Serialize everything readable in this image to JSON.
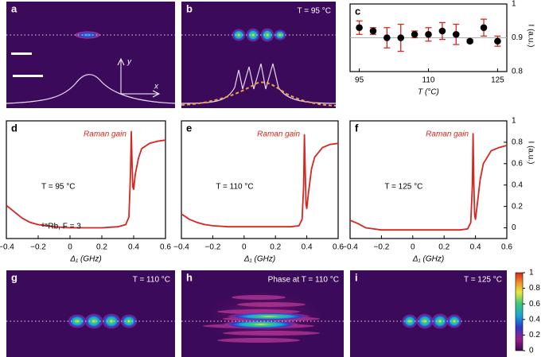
{
  "chart_data": [
    {
      "type": "image",
      "panel": "a",
      "y_arrow": "y",
      "x_arrow": "x"
    },
    {
      "type": "image",
      "panel": "b",
      "annotation": "T = 95 °C"
    },
    {
      "type": "scatter",
      "panel": "c",
      "x": [
        95,
        98,
        101,
        104,
        107,
        110,
        113,
        116,
        119,
        122,
        125
      ],
      "values": [
        0.93,
        0.92,
        0.9,
        0.9,
        0.91,
        0.91,
        0.92,
        0.91,
        0.89,
        0.93,
        0.89
      ],
      "errors": [
        0.02,
        0.01,
        0.03,
        0.04,
        0.01,
        0.02,
        0.025,
        0.03,
        0.005,
        0.025,
        0.015
      ],
      "hline": 0.9,
      "color": "#000000",
      "error_color": "#d7261e",
      "hline_color": "#b0b0b0",
      "xlim": [
        93,
        127
      ],
      "ylim": [
        0.8,
        1.0
      ],
      "xticks": [
        95,
        110,
        125
      ],
      "yticks": [
        0.8,
        0.9,
        1
      ],
      "xlabel": "T (°C)",
      "ylabel": "I (a.u.)"
    },
    {
      "type": "line",
      "panel": "d",
      "annotation": "Raman gain",
      "temperature": "T = 95 °C",
      "note": "⁸⁵Rb, F = 3",
      "color": "#d7261e",
      "x": [
        -0.4,
        -0.35,
        -0.3,
        -0.25,
        -0.2,
        -0.1,
        0,
        0.1,
        0.2,
        0.3,
        0.35,
        0.37,
        0.38,
        0.385,
        0.39,
        0.395,
        0.4,
        0.41,
        0.43,
        0.45,
        0.5,
        0.55,
        0.6
      ],
      "values": [
        0.21,
        0.15,
        0.09,
        0.05,
        0.03,
        0.01,
        0.0,
        0.0,
        0.0,
        0.01,
        0.03,
        0.1,
        0.5,
        0.9,
        0.6,
        0.38,
        0.36,
        0.5,
        0.65,
        0.74,
        0.79,
        0.81,
        0.82
      ],
      "xlim": [
        -0.4,
        0.6
      ],
      "ylim": [
        -0.1,
        1
      ],
      "xticks": [
        {
          "value": -0.4,
          "label": "−0.4"
        },
        {
          "value": -0.2,
          "label": "−0.2"
        },
        0,
        0.2,
        0.4,
        0.6
      ],
      "xlabel": "Δ₁ (GHz)"
    },
    {
      "type": "line",
      "panel": "e",
      "annotation": "Raman gain",
      "temperature": "T = 110 °C",
      "color": "#d7261e",
      "x": [
        -0.4,
        -0.35,
        -0.3,
        -0.25,
        -0.2,
        -0.1,
        0,
        0.1,
        0.2,
        0.3,
        0.35,
        0.37,
        0.38,
        0.385,
        0.39,
        0.395,
        0.4,
        0.41,
        0.43,
        0.45,
        0.5,
        0.55,
        0.6
      ],
      "values": [
        0.13,
        0.08,
        0.05,
        0.03,
        0.02,
        0.01,
        0.01,
        0.01,
        0.01,
        0.01,
        0.02,
        0.08,
        0.4,
        0.87,
        0.55,
        0.22,
        0.18,
        0.32,
        0.55,
        0.66,
        0.75,
        0.78,
        0.79
      ],
      "xlim": [
        -0.4,
        0.6
      ],
      "ylim": [
        -0.1,
        1
      ],
      "xticks": [
        {
          "value": -0.4,
          "label": "−0.4"
        },
        {
          "value": -0.2,
          "label": "−0.2"
        },
        0,
        0.2,
        0.4,
        0.6
      ],
      "xlabel": "Δ₁ (GHz)"
    },
    {
      "type": "line",
      "panel": "f",
      "annotation": "Raman gain",
      "temperature": "T = 125 °C",
      "color": "#d7261e",
      "x": [
        -0.4,
        -0.35,
        -0.3,
        -0.25,
        -0.2,
        -0.1,
        0,
        0.1,
        0.2,
        0.3,
        0.35,
        0.37,
        0.38,
        0.385,
        0.39,
        0.395,
        0.4,
        0.41,
        0.43,
        0.45,
        0.5,
        0.55,
        0.6
      ],
      "values": [
        0.07,
        0.04,
        0.0,
        -0.01,
        -0.02,
        -0.02,
        -0.02,
        -0.02,
        -0.02,
        -0.02,
        -0.01,
        0.05,
        0.4,
        0.88,
        0.4,
        0.12,
        0.08,
        0.2,
        0.45,
        0.6,
        0.72,
        0.75,
        0.77
      ],
      "xlim": [
        -0.4,
        0.6
      ],
      "ylim": [
        -0.1,
        1
      ],
      "xticks": [
        {
          "value": -0.4,
          "label": "−0.4"
        },
        {
          "value": -0.2,
          "label": "−0.2"
        },
        0,
        0.2,
        0.4,
        0.6
      ],
      "yticks": [
        0,
        0.2,
        0.4,
        0.6,
        0.8,
        1
      ],
      "xlabel": "Δ₁ (GHz)",
      "ylabel": "I (a.u.)"
    },
    {
      "type": "image",
      "panel": "g",
      "annotation": "T = 110 °C"
    },
    {
      "type": "image",
      "panel": "h",
      "annotation": "Phase at T = 110 °C"
    },
    {
      "type": "image",
      "panel": "i",
      "annotation": "T = 125 °C"
    },
    {
      "type": "colorbar",
      "ylim": [
        0,
        1
      ],
      "yticks": [
        0,
        0.2,
        0.4,
        0.6,
        0.8,
        1
      ]
    }
  ]
}
